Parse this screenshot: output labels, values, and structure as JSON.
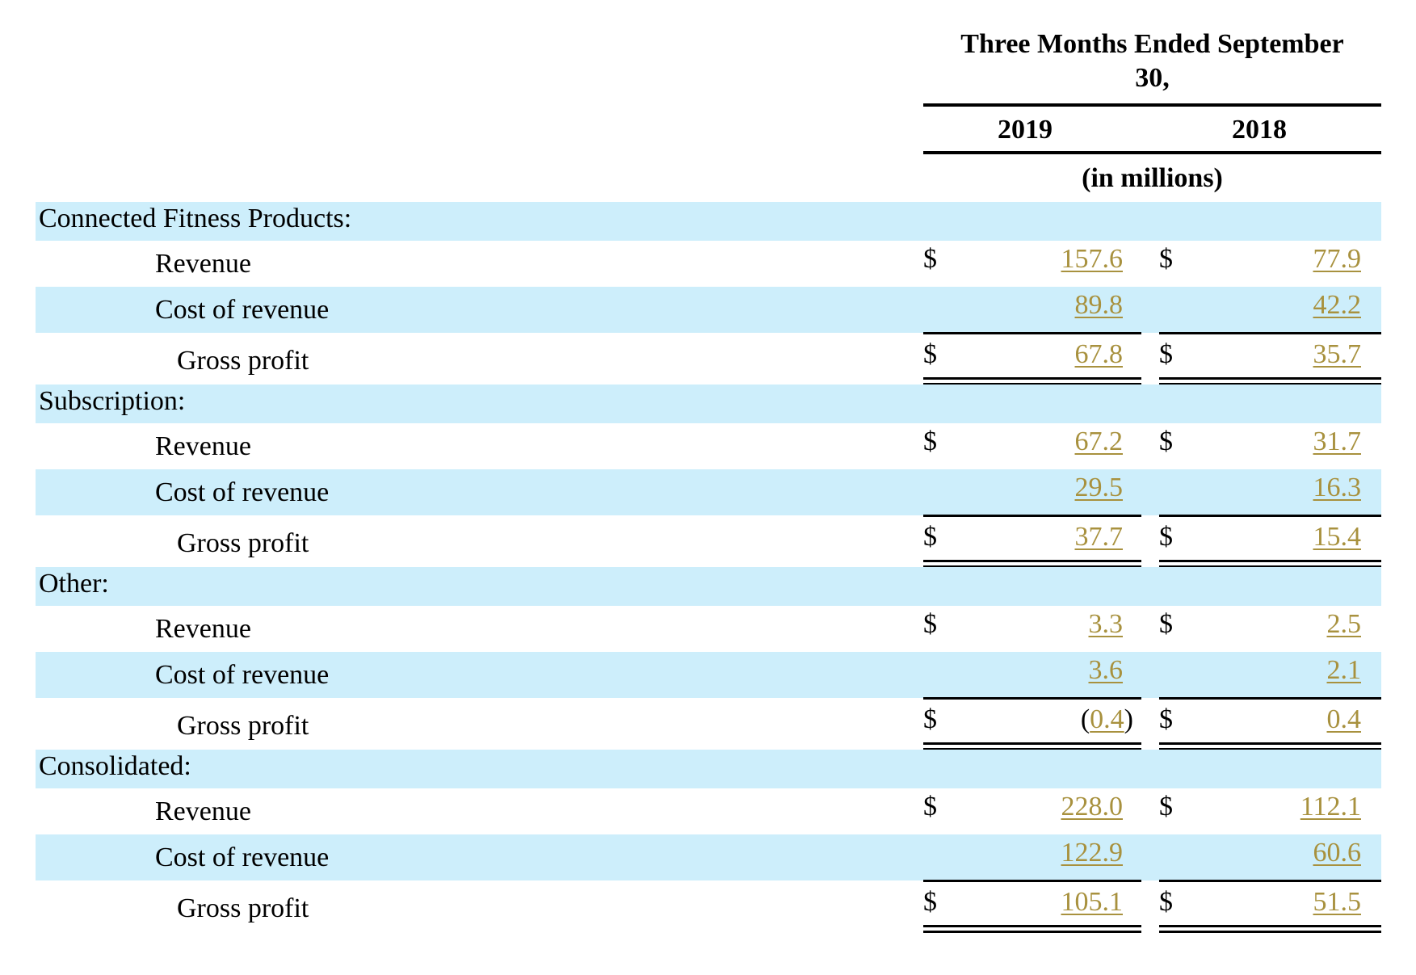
{
  "header": {
    "period_line1": "Three Months Ended September",
    "period_line2": "30,",
    "col_2019": "2019",
    "col_2018": "2018",
    "units": "(in millions)"
  },
  "currency_symbol": "$",
  "sections": [
    {
      "title": "Connected Fitness Products:",
      "rows": [
        {
          "label": "Revenue",
          "v2019": "157.6",
          "v2018": "77.9",
          "show_currency": true
        },
        {
          "label": "Cost of revenue",
          "v2019": "89.8",
          "v2018": "42.2",
          "show_currency": false
        },
        {
          "label": "Gross profit",
          "v2019": "67.8",
          "v2018": "35.7",
          "show_currency": true
        }
      ]
    },
    {
      "title": "Subscription:",
      "rows": [
        {
          "label": "Revenue",
          "v2019": "67.2",
          "v2018": "31.7",
          "show_currency": true
        },
        {
          "label": "Cost of revenue",
          "v2019": "29.5",
          "v2018": "16.3",
          "show_currency": false
        },
        {
          "label": "Gross profit",
          "v2019": "37.7",
          "v2018": "15.4",
          "show_currency": true
        }
      ]
    },
    {
      "title": "Other:",
      "rows": [
        {
          "label": "Revenue",
          "v2019": "3.3",
          "v2018": "2.5",
          "show_currency": true
        },
        {
          "label": "Cost of revenue",
          "v2019": "3.6",
          "v2018": "2.1",
          "show_currency": false
        },
        {
          "label": "Gross profit",
          "v2019": "0.4",
          "v2019_negative": true,
          "v2018": "0.4",
          "show_currency": true
        }
      ]
    },
    {
      "title": "Consolidated:",
      "rows": [
        {
          "label": "Revenue",
          "v2019": "228.0",
          "v2018": "112.1",
          "show_currency": true
        },
        {
          "label": "Cost of revenue",
          "v2019": "122.9",
          "v2018": "60.6",
          "show_currency": false
        },
        {
          "label": "Gross profit",
          "v2019": "105.1",
          "v2018": "51.5",
          "show_currency": true
        }
      ]
    }
  ]
}
